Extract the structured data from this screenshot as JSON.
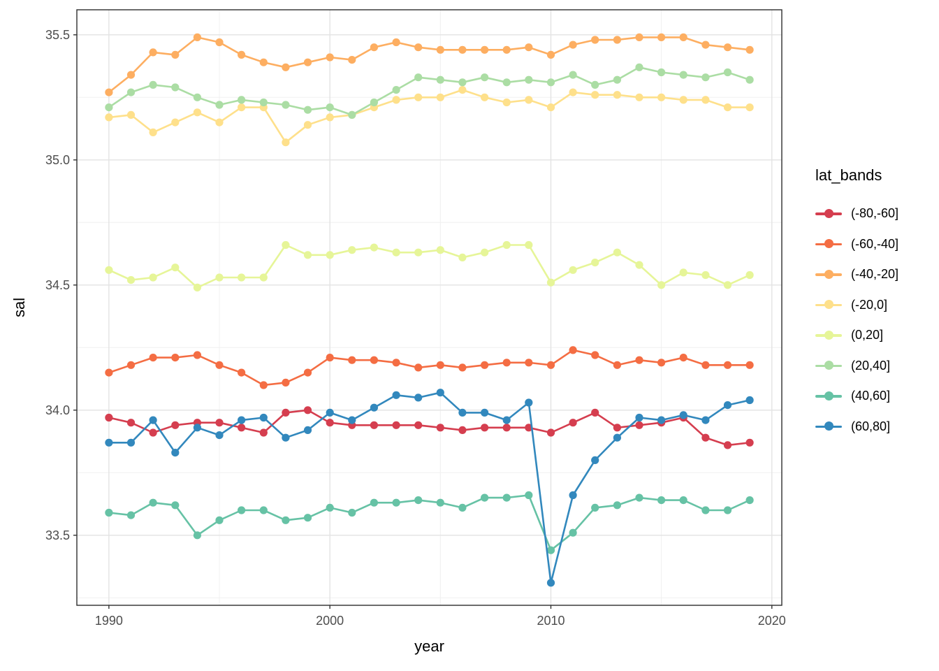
{
  "chart_data": {
    "type": "line",
    "xlabel": "year",
    "ylabel": "sal",
    "legend_title": "lat_bands",
    "legend_position": "right",
    "grid": true,
    "xlim": [
      1988.55,
      2020.45
    ],
    "ylim": [
      33.22,
      35.6
    ],
    "x_ticks_major": [
      1990,
      2000,
      2010,
      2020
    ],
    "x_ticks_minor": [
      1995,
      2005,
      2015
    ],
    "y_ticks_major": [
      33.5,
      34.0,
      34.5,
      35.0,
      35.5
    ],
    "y_ticks_minor": [
      33.25,
      33.75,
      34.25,
      34.75,
      35.25
    ],
    "x": [
      1990,
      1991,
      1992,
      1993,
      1994,
      1995,
      1996,
      1997,
      1998,
      1999,
      2000,
      2001,
      2002,
      2003,
      2004,
      2005,
      2006,
      2007,
      2008,
      2009,
      2010,
      2011,
      2012,
      2013,
      2014,
      2015,
      2016,
      2017,
      2018,
      2019
    ],
    "series": [
      {
        "name": "(-80,-60]",
        "color": "#D53E4F",
        "values": [
          33.97,
          33.95,
          33.91,
          33.94,
          33.95,
          33.95,
          33.93,
          33.91,
          33.99,
          34.0,
          33.95,
          33.94,
          33.94,
          33.94,
          33.94,
          33.93,
          33.92,
          33.93,
          33.93,
          33.93,
          33.91,
          33.95,
          33.99,
          33.93,
          33.94,
          33.95,
          33.97,
          33.89,
          33.86,
          33.87
        ]
      },
      {
        "name": "(-60,-40]",
        "color": "#F46D43",
        "values": [
          34.15,
          34.18,
          34.21,
          34.21,
          34.22,
          34.18,
          34.15,
          34.1,
          34.11,
          34.15,
          34.21,
          34.2,
          34.2,
          34.19,
          34.17,
          34.18,
          34.17,
          34.18,
          34.19,
          34.19,
          34.18,
          34.24,
          34.22,
          34.18,
          34.2,
          34.19,
          34.21,
          34.18,
          34.18,
          34.18
        ]
      },
      {
        "name": "(-40,-20]",
        "color": "#FDAE61",
        "values": [
          35.27,
          35.34,
          35.43,
          35.42,
          35.49,
          35.47,
          35.42,
          35.39,
          35.37,
          35.39,
          35.41,
          35.4,
          35.45,
          35.47,
          35.45,
          35.44,
          35.44,
          35.44,
          35.44,
          35.45,
          35.42,
          35.46,
          35.48,
          35.48,
          35.49,
          35.49,
          35.49,
          35.46,
          35.45,
          35.44
        ]
      },
      {
        "name": "(-20,0]",
        "color": "#FEE08B",
        "values": [
          35.17,
          35.18,
          35.11,
          35.15,
          35.19,
          35.15,
          35.21,
          35.21,
          35.07,
          35.14,
          35.17,
          35.18,
          35.21,
          35.24,
          35.25,
          35.25,
          35.28,
          35.25,
          35.23,
          35.24,
          35.21,
          35.27,
          35.26,
          35.26,
          35.25,
          35.25,
          35.24,
          35.24,
          35.21,
          35.21
        ]
      },
      {
        "name": "(0,20]",
        "color": "#E6F598",
        "values": [
          34.56,
          34.52,
          34.53,
          34.57,
          34.49,
          34.53,
          34.53,
          34.53,
          34.66,
          34.62,
          34.62,
          34.64,
          34.65,
          34.63,
          34.63,
          34.64,
          34.61,
          34.63,
          34.66,
          34.66,
          34.51,
          34.56,
          34.59,
          34.63,
          34.58,
          34.5,
          34.55,
          34.54,
          34.5,
          34.54
        ]
      },
      {
        "name": "(20,40]",
        "color": "#ABDDA4",
        "values": [
          35.21,
          35.27,
          35.3,
          35.29,
          35.25,
          35.22,
          35.24,
          35.23,
          35.22,
          35.2,
          35.21,
          35.18,
          35.23,
          35.28,
          35.33,
          35.32,
          35.31,
          35.33,
          35.31,
          35.32,
          35.31,
          35.34,
          35.3,
          35.32,
          35.37,
          35.35,
          35.34,
          35.33,
          35.35,
          35.32
        ]
      },
      {
        "name": "(40,60]",
        "color": "#66C2A5",
        "values": [
          33.59,
          33.58,
          33.63,
          33.62,
          33.5,
          33.56,
          33.6,
          33.6,
          33.56,
          33.57,
          33.61,
          33.59,
          33.63,
          33.63,
          33.64,
          33.63,
          33.61,
          33.65,
          33.65,
          33.66,
          33.44,
          33.51,
          33.61,
          33.62,
          33.65,
          33.64,
          33.64,
          33.6,
          33.6,
          33.64
        ]
      },
      {
        "name": "(60,80]",
        "color": "#3288BD",
        "values": [
          33.87,
          33.87,
          33.96,
          33.83,
          33.93,
          33.9,
          33.96,
          33.97,
          33.89,
          33.92,
          33.99,
          33.96,
          34.01,
          34.06,
          34.05,
          34.07,
          33.99,
          33.99,
          33.96,
          34.03,
          33.31,
          33.66,
          33.8,
          33.89,
          33.97,
          33.96,
          33.98,
          33.96,
          34.02,
          34.04
        ]
      }
    ]
  }
}
